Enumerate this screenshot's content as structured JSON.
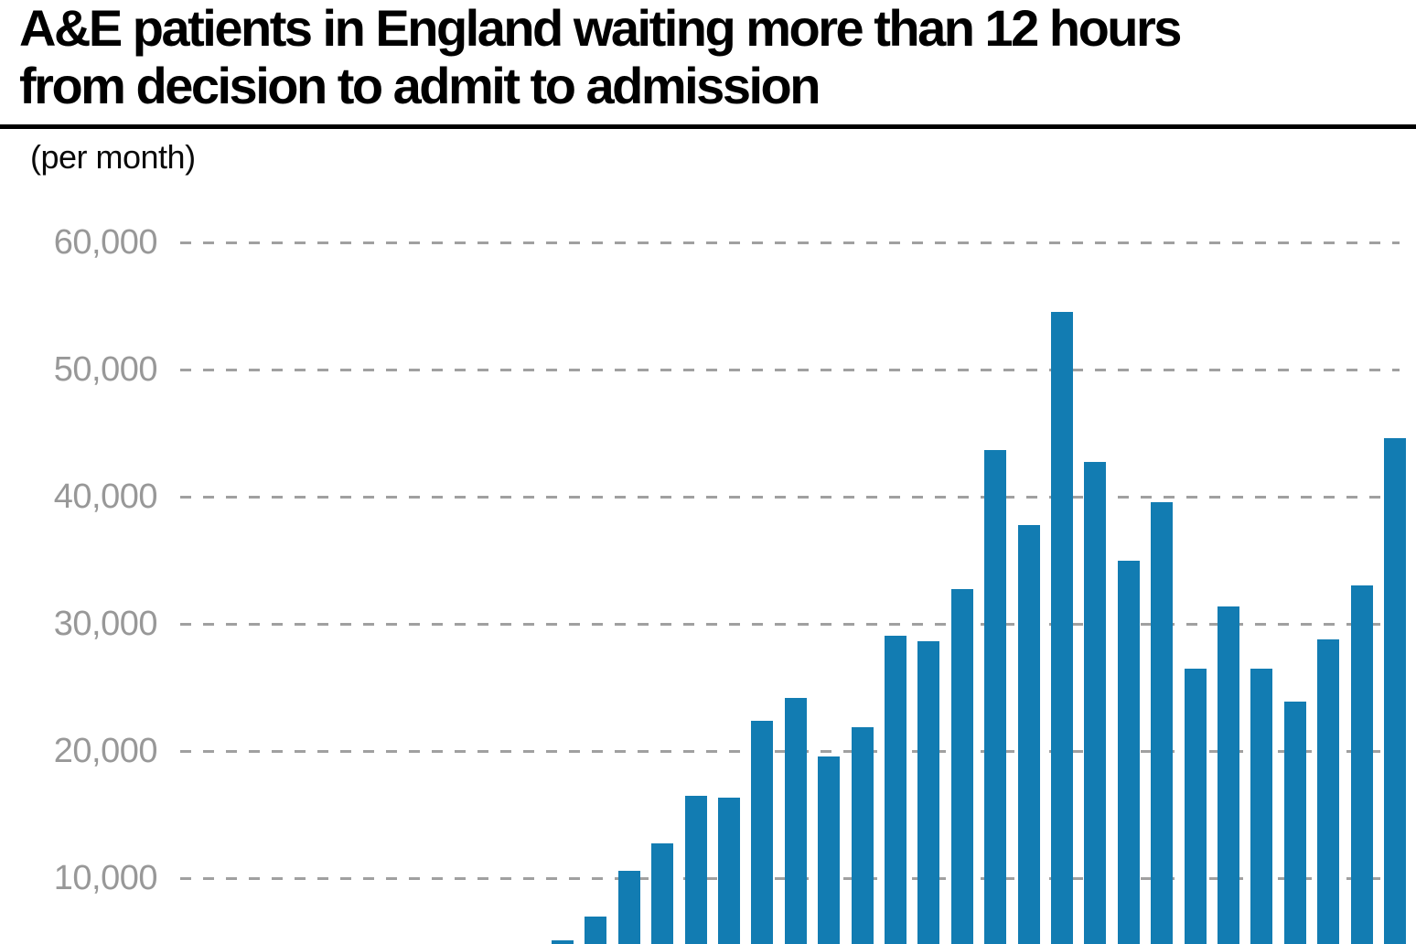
{
  "header": {
    "title_lines": [
      "A&E patients in England waiting more than 12 hours",
      "from decision to admit to admission"
    ],
    "subtitle": "(per month)"
  },
  "colors": {
    "background": "#ffffff",
    "title": "#000000",
    "rule": "#000000",
    "bar": "#127cb2",
    "gridline": "#a0a0a0",
    "tick_label": "#989898"
  },
  "chart_data": {
    "type": "bar",
    "title": "A&E patients in England waiting more than 12 hours from decision to admit to admission",
    "subtitle": "(per month)",
    "values": [
      5100,
      7000,
      10600,
      12700,
      16500,
      16300,
      22400,
      24200,
      19600,
      21900,
      29100,
      28600,
      32700,
      43700,
      37800,
      54500,
      42700,
      35000,
      39600,
      26500,
      31400,
      26500,
      23900,
      28800,
      33000,
      44600
    ],
    "ylabel": "(per month)",
    "ylim": [
      0,
      60000
    ],
    "yticks": [
      10000,
      20000,
      30000,
      40000,
      50000,
      60000
    ],
    "ytick_labels": [
      "10,000",
      "20,000",
      "30,000",
      "40,000",
      "50,000",
      "60,000"
    ],
    "grid": "horizontal-dashed",
    "legend": "none",
    "x_axis_tick_labels": []
  }
}
